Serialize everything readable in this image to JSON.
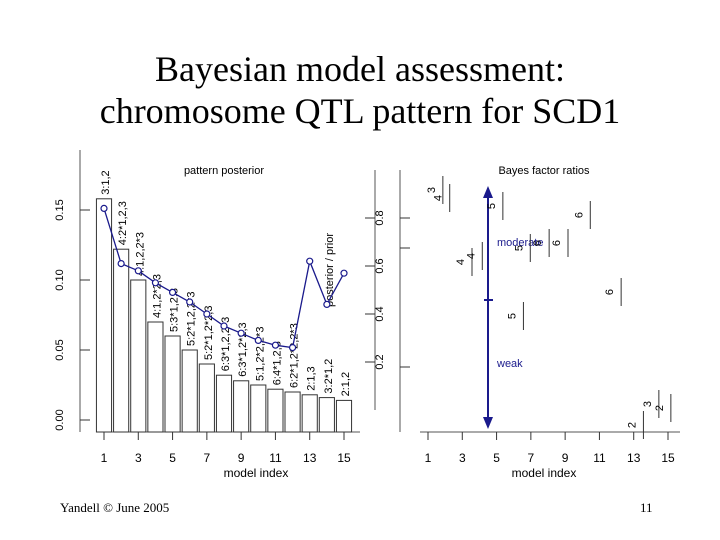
{
  "slide": {
    "title_line1": "Bayesian model assessment:",
    "title_line2": "chromosome QTL pattern for SCD1",
    "footer_left": "Yandell © June 2005",
    "footer_right": "11"
  },
  "chart_data": [
    {
      "type": "bar",
      "title": "pattern posterior",
      "xlabel": "model index",
      "ylabel_left": "",
      "ylabel_right": "posterior / prior",
      "x": [
        1,
        2,
        3,
        4,
        5,
        6,
        7,
        8,
        9,
        10,
        11,
        12,
        13,
        14,
        15
      ],
      "xticks": [
        "1",
        "3",
        "5",
        "7",
        "9",
        "11",
        "13",
        "15"
      ],
      "left_ylim": [
        0,
        0.17
      ],
      "left_yticks": [
        "0.00",
        "0.05",
        "0.10",
        "0.15"
      ],
      "right_ylim": [
        0,
        1.0
      ],
      "right_yticks": [
        "0.2",
        "0.4",
        "0.6",
        "0.8"
      ],
      "bar_values": [
        0.158,
        0.122,
        0.1,
        0.07,
        0.06,
        0.05,
        0.04,
        0.032,
        0.028,
        0.025,
        0.022,
        0.02,
        0.018,
        0.016,
        0.014
      ],
      "pattern_labels": [
        "3:1,2",
        "4:2*1,2,3",
        "4:1,2,2*3",
        "4:1,2*2,3",
        "5:3*1,2,3",
        "5:2*1,2,2*3",
        "5:2*1,2*2,3",
        "6:3*1,2,2*3",
        "6:3*1,2*2,3",
        "5:1,2*2,2*3",
        "6:4*1,2,3",
        "6:2*1,2*2,2*3",
        "2:1,3",
        "3:2*1,2",
        "2:1,2"
      ],
      "ratio_values": [
        0.84,
        0.61,
        0.58,
        0.53,
        0.49,
        0.45,
        0.4,
        0.35,
        0.32,
        0.29,
        0.27,
        0.26,
        0.62,
        0.44,
        0.57
      ]
    },
    {
      "type": "scatter",
      "title": "Bayes factor ratios",
      "xlabel": "model index",
      "xticks": [
        "1",
        "3",
        "5",
        "7",
        "9",
        "11",
        "13",
        "15"
      ],
      "annotations": [
        "moderate",
        "weak"
      ],
      "points": [
        {
          "x": 1.4,
          "label": "3"
        },
        {
          "x": 1.8,
          "label": "4"
        },
        {
          "x": 3.1,
          "label": "4"
        },
        {
          "x": 3.7,
          "label": "4"
        },
        {
          "x": 4.9,
          "label": "5"
        },
        {
          "x": 6.5,
          "label": "5"
        },
        {
          "x": 7.6,
          "label": "6"
        },
        {
          "x": 8.7,
          "label": "6"
        },
        {
          "x": 10.0,
          "label": "6"
        },
        {
          "x": 6.1,
          "label": "5"
        },
        {
          "x": 11.8,
          "label": "6"
        },
        {
          "x": 13.1,
          "label": "2"
        },
        {
          "x": 14.0,
          "label": "3"
        },
        {
          "x": 14.7,
          "label": "2"
        }
      ]
    }
  ]
}
